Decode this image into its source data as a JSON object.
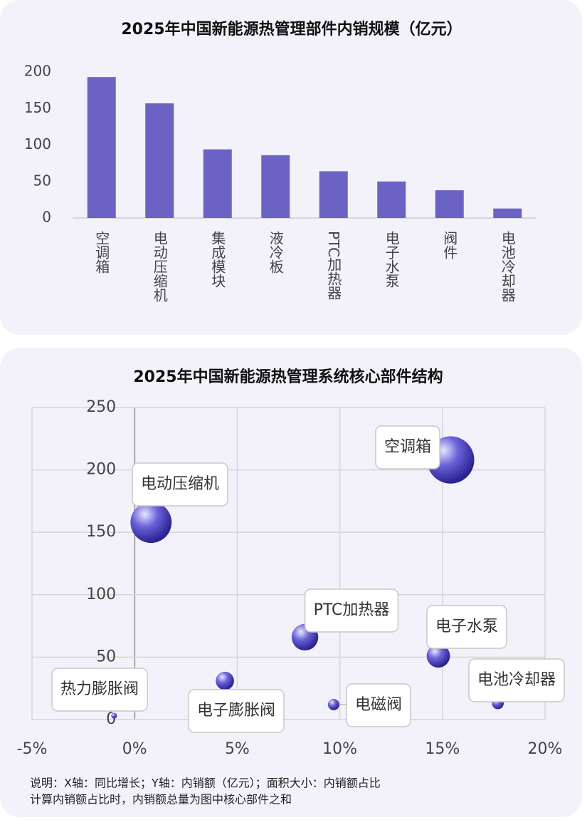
{
  "chart_data": [
    {
      "type": "bar",
      "title": "2025年中国新能源热管理部件内销规模（亿元）",
      "categories": [
        "空调箱",
        "电动压缩机",
        "集成模块",
        "液冷板",
        "PTC加热器",
        "电子水泵",
        "阀件",
        "电池冷却器"
      ],
      "values": [
        193,
        157,
        94,
        86,
        64,
        50,
        38,
        13
      ],
      "color": "#6b63c4",
      "ylim": [
        0,
        200
      ],
      "yticks": [
        0,
        50,
        100,
        150,
        200
      ],
      "grid": false
    },
    {
      "type": "bubble",
      "title": "2025年中国新能源热管理系统核心部件结构",
      "series": [
        {
          "name": null,
          "color": "#4b43c0",
          "labels": [
            "空调箱",
            "电动压缩机",
            "PTC加热器",
            "电子水泵",
            "电池冷却器",
            "电磁阀",
            "电子膨胀阀",
            "热力膨胀阀"
          ],
          "x": [
            15.4,
            0.8,
            8.3,
            14.8,
            17.7,
            9.7,
            4.4,
            -1.0
          ],
          "values": [
            208,
            158,
            66,
            51,
            13,
            12,
            31,
            3
          ]
        }
      ],
      "xlim": [
        -5,
        20
      ],
      "xticks": [
        {
          "value": -5,
          "label": "-5%"
        },
        {
          "value": 0,
          "label": "0%"
        },
        {
          "value": 5,
          "label": "5%"
        },
        {
          "value": 10,
          "label": "10%"
        },
        {
          "value": 15,
          "label": "15%"
        },
        {
          "value": 20,
          "label": "20%"
        }
      ],
      "ylim": [
        0,
        250
      ],
      "yticks": [
        0,
        50,
        100,
        150,
        200,
        250
      ],
      "grid": true,
      "notes": [
        "说明：X轴：同比增长；Y轴：内销额（亿元）；面积大小：内销额占比",
        "计算内销额占比时，内销额总量为图中核心部件之和"
      ]
    }
  ]
}
